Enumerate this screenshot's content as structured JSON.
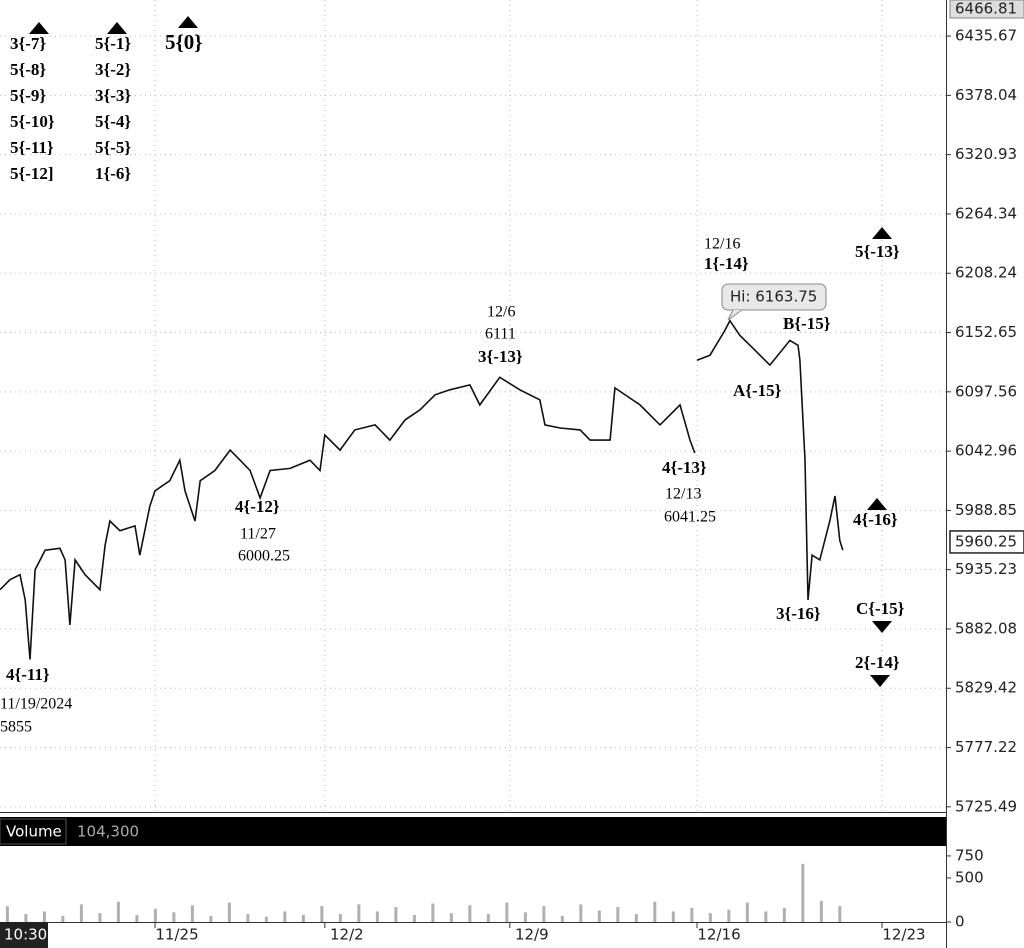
{
  "chart_data": [
    {
      "type": "line",
      "log_scale": true,
      "grid": true,
      "color": "#111111",
      "ylim": [
        5721,
        6471
      ],
      "yticks": [
        6435.67,
        6378.04,
        6320.93,
        6264.34,
        6208.24,
        6152.65,
        6097.56,
        6042.96,
        5988.85,
        5935.23,
        5882.08,
        5829.42,
        5777.22,
        5725.49
      ],
      "top_price_label": 6466.81,
      "last_price": 5960.25,
      "xlim": [
        0,
        25.57
      ],
      "xticks": [
        {
          "value": 4.19,
          "label": "11/25"
        },
        {
          "value": 8.78,
          "label": "12/2"
        },
        {
          "value": 13.78,
          "label": "12/9"
        },
        {
          "value": 18.84,
          "label": "12/16"
        },
        {
          "value": 23.84,
          "label": "12/23"
        }
      ],
      "cursor_time_label": "10:30",
      "x": [
        0,
        0.27,
        0.54,
        0.68,
        0.81,
        0.95,
        1.22,
        1.62,
        1.76,
        1.89,
        2.03,
        2.3,
        2.7,
        2.84,
        2.97,
        3.24,
        3.65,
        3.78,
        4.05,
        4.19,
        4.59,
        4.86,
        5,
        5.27,
        5.41,
        5.81,
        6.22,
        6.49,
        6.76,
        7.03,
        7.3,
        7.84,
        8.38,
        8.65,
        8.78,
        9.19,
        9.59,
        10.14,
        10.54,
        10.95,
        11.35,
        11.76,
        12.16,
        12.7,
        12.97,
        13.51,
        14.05,
        14.59,
        14.73,
        15.14,
        15.68,
        15.95,
        16.49,
        16.62,
        17.3,
        17.84,
        18.38,
        18.65,
        18.78,
        18.81,
        18.84,
        19.19,
        19.59,
        19.73,
        20,
        20.41,
        20.81,
        21.35,
        21.57,
        21.62,
        21.76,
        21.84,
        21.95,
        22.16,
        22.43,
        22.57,
        22.7,
        22.78
      ],
      "values": [
        5917.2,
        5926.2,
        5930.7,
        5908.1,
        5855,
        5935.2,
        5952.8,
        5954.5,
        5944,
        5885.7,
        5944,
        5930.7,
        5917.2,
        5957.2,
        5979.2,
        5970.4,
        5974.8,
        5948.4,
        5992.6,
        6006.6,
        6015.9,
        6034.6,
        6006.6,
        5979.2,
        6015.9,
        6025.2,
        6043.9,
        6034.6,
        6025.2,
        6000.25,
        6025.2,
        6027.1,
        6034.6,
        6025.2,
        6057.8,
        6043.9,
        6062.4,
        6067,
        6053.1,
        6071.6,
        6080.9,
        6094.8,
        6099.4,
        6104,
        6085.5,
        6111,
        6099.4,
        6090.2,
        6067,
        6064.2,
        6062.4,
        6053.1,
        6053.1,
        6101.2,
        6085.5,
        6067,
        6085.5,
        6053.1,
        6041.25,
        null,
        6126.9,
        6131.5,
        6154.5,
        6163.75,
        6149.9,
        6136.1,
        6122.3,
        6145.3,
        6140.7,
        6126.9,
        6034.6,
        5908.1,
        5948.4,
        5944,
        5979.2,
        6001.9,
        5961.6,
        5952.8
      ],
      "annotations": [
        "3{-7}",
        "5{-8}",
        "5{-9}",
        "5{-10}",
        "5{-11}",
        "5{-12]",
        "5{-1}",
        "3{-2}",
        "3{-3}",
        "5{-4}",
        "5{-5}",
        "1{-6}",
        "5{0}",
        "4{-11}",
        "11/19/2024",
        "5855",
        "4{-12}",
        "11/27",
        "6000.25",
        "12/6",
        "6111",
        "3{-13}",
        "4{-13}",
        "12/13",
        "6041.25",
        "12/16",
        "1{-14}",
        "Hi: 6163.75",
        "B{-15}",
        "A{-15}",
        "5{-13}",
        "4{-16}",
        "3{-16}",
        "C{-15}",
        "2{-14}"
      ]
    },
    {
      "type": "bar",
      "title": "Volume",
      "current_label": "104,300",
      "color": "#b0b0b0",
      "ylim": [
        0,
        840
      ],
      "yticks": [
        750,
        500,
        0
      ],
      "xlim": [
        0,
        25.57
      ],
      "x": [
        0.2,
        0.7,
        1.2,
        1.7,
        2.2,
        2.7,
        3.2,
        3.7,
        4.2,
        4.7,
        5.2,
        5.7,
        6.2,
        6.7,
        7.2,
        7.7,
        8.2,
        8.7,
        9.2,
        9.7,
        10.2,
        10.7,
        11.2,
        11.7,
        12.2,
        12.7,
        13.2,
        13.7,
        14.2,
        14.7,
        15.2,
        15.7,
        16.2,
        16.7,
        17.2,
        17.7,
        18.2,
        18.7,
        19.2,
        19.7,
        20.2,
        20.7,
        21.2,
        21.7,
        22.2,
        22.7
      ],
      "values": [
        180,
        90,
        120,
        70,
        200,
        100,
        230,
        80,
        150,
        110,
        190,
        70,
        220,
        90,
        60,
        120,
        80,
        180,
        90,
        200,
        120,
        170,
        80,
        210,
        100,
        190,
        90,
        220,
        110,
        180,
        70,
        200,
        130,
        170,
        90,
        230,
        120,
        160,
        100,
        140,
        220,
        120,
        160,
        660,
        240,
        180
      ]
    }
  ]
}
